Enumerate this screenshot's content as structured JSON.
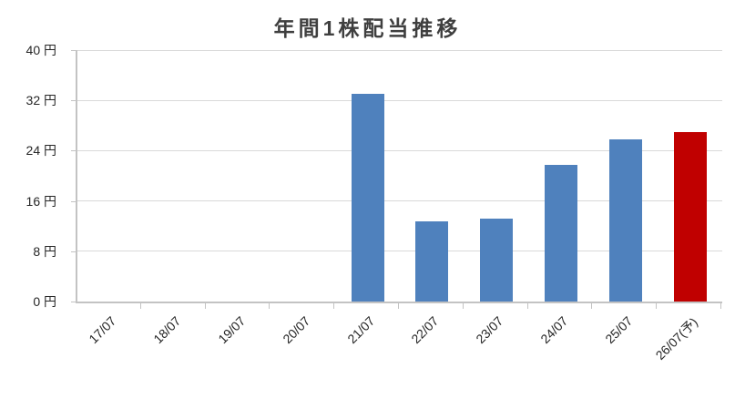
{
  "chart_data": {
    "type": "bar",
    "title": "年間1株配当推移",
    "unit": "円",
    "categories": [
      "17/07",
      "18/07",
      "19/07",
      "20/07",
      "21/07",
      "22/07",
      "23/07",
      "24/07",
      "25/07",
      "26/07(予)"
    ],
    "values": [
      0,
      0,
      0,
      0,
      33,
      12.75,
      13.25,
      21.75,
      25.75,
      27
    ],
    "forecast_index": 9,
    "xlabel": "",
    "ylabel": "",
    "ylim": [
      0,
      40
    ],
    "yticks": [
      0,
      8,
      16,
      24,
      32,
      40
    ],
    "ytick_labels": [
      "0 円",
      "8 円",
      "16 円",
      "24 円",
      "32 円",
      "40 円"
    ],
    "grid": true,
    "legend": false,
    "colors": {
      "bar": "#4F81BD",
      "forecast_bar": "#C00000",
      "gridline": "#D9D9D9",
      "axis": "#C3C3C3",
      "tick_text": "#262626",
      "title_text": "#3F3F3F",
      "background": "#FFFFFF"
    }
  }
}
